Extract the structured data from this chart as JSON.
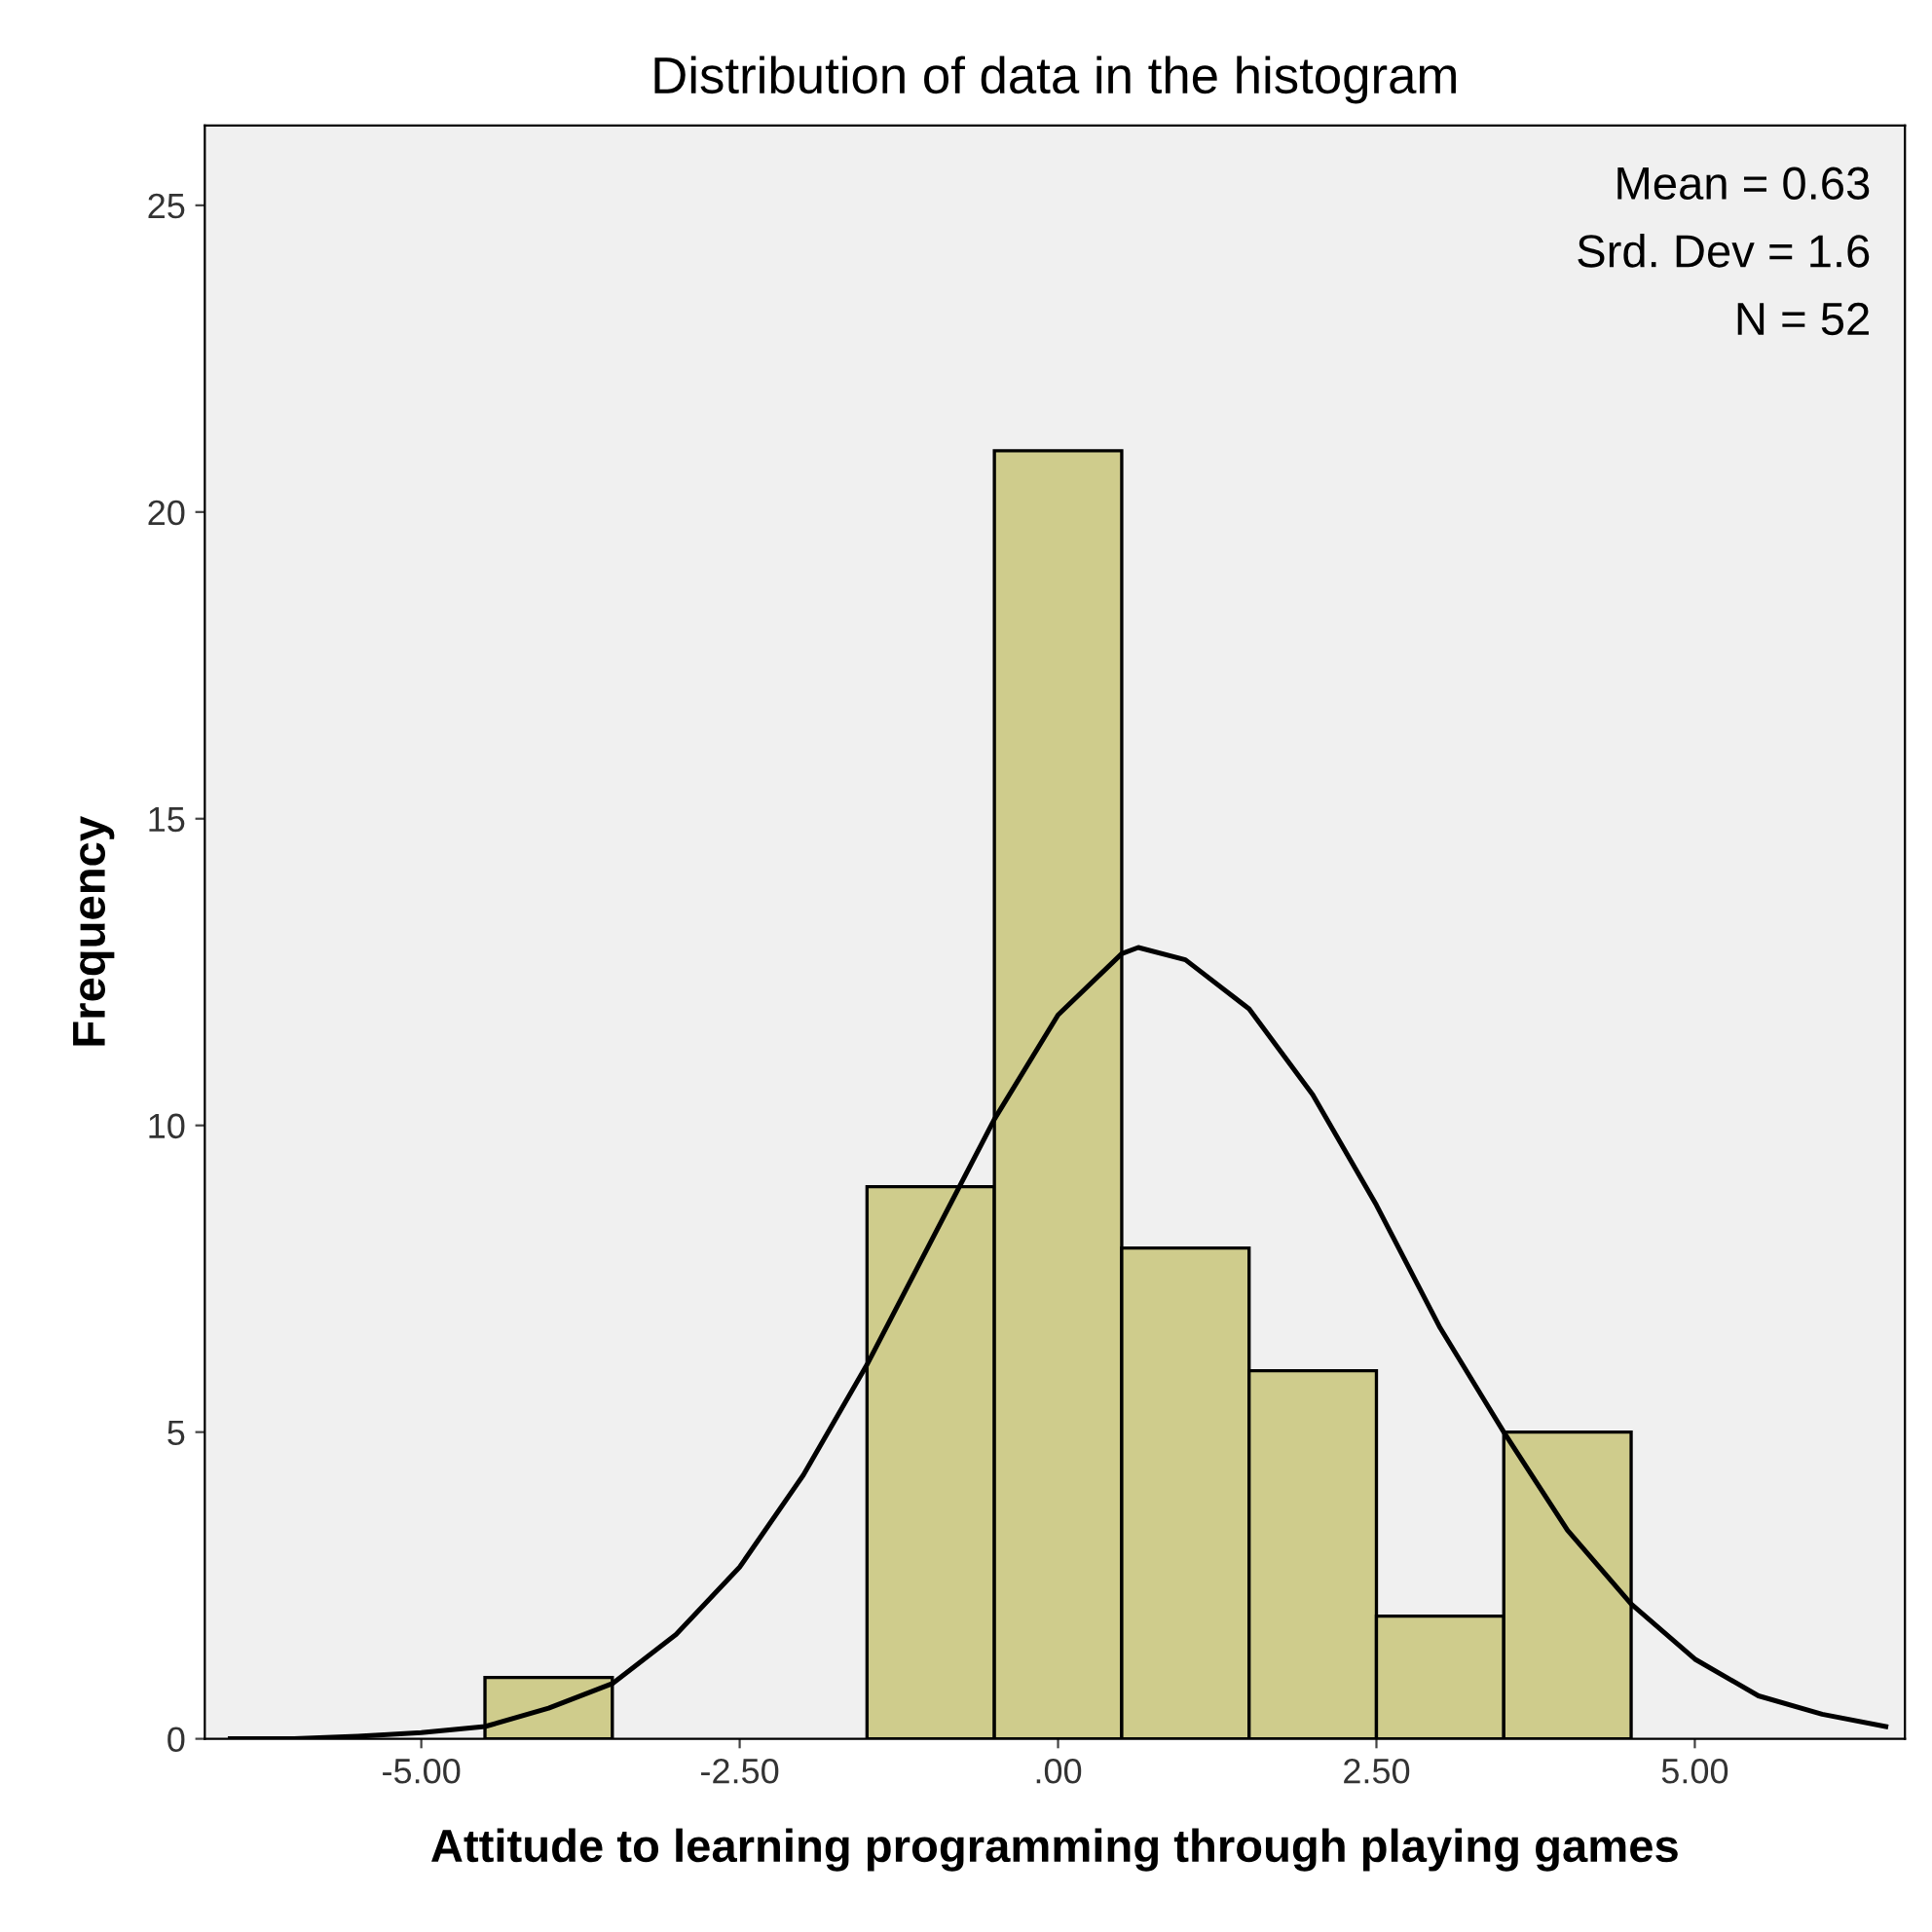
{
  "chart_data": {
    "type": "histogram",
    "title": "Distribution of data in the histogram",
    "xlabel": "Attitude to learning programming through playing games",
    "ylabel": "Frequency",
    "bins": [
      -4.5,
      -3.5,
      -2.5,
      -1.5,
      -0.5,
      0.5,
      1.5,
      2.5,
      3.5,
      4.5
    ],
    "values": [
      1,
      0,
      0,
      9,
      21,
      8,
      6,
      2,
      5
    ],
    "color": "#cfcc8c",
    "series": [
      {
        "type": "line",
        "color": "#000000",
        "x": [
          -6.5,
          -6,
          -5.5,
          -5,
          -4.5,
          -4,
          -3.5,
          -3,
          -2.5,
          -2,
          -1.5,
          -1,
          -0.5,
          0,
          0.5,
          0.63,
          1,
          1.5,
          2,
          2.5,
          3,
          3.5,
          4,
          4.5,
          5,
          5.5,
          6,
          6.5
        ],
        "values": [
          0.0,
          0.0,
          0.04,
          0.1,
          0.2,
          0.5,
          0.9,
          1.7,
          2.8,
          4.3,
          6.1,
          8.1,
          10.1,
          11.8,
          12.8,
          12.9,
          12.7,
          11.9,
          10.5,
          8.7,
          6.7,
          5.0,
          3.4,
          2.2,
          1.3,
          0.7,
          0.4,
          0.2
        ]
      }
    ],
    "xlim": [
      -6.7,
      6.65
    ],
    "ylim": [
      0,
      26.3
    ],
    "xticks": [
      {
        "value": -5,
        "label": "-5.00"
      },
      {
        "value": -2.5,
        "label": "-2.50"
      },
      {
        "value": 0,
        "label": ".00"
      },
      {
        "value": 2.5,
        "label": "2.50"
      },
      {
        "value": 5,
        "label": "5.00"
      }
    ],
    "yticks": [
      0,
      5,
      10,
      15,
      20,
      25
    ],
    "grid": false,
    "annotations": [
      "Mean = 0.63",
      "Srd. Dev = 1.6",
      "N = 52"
    ]
  }
}
